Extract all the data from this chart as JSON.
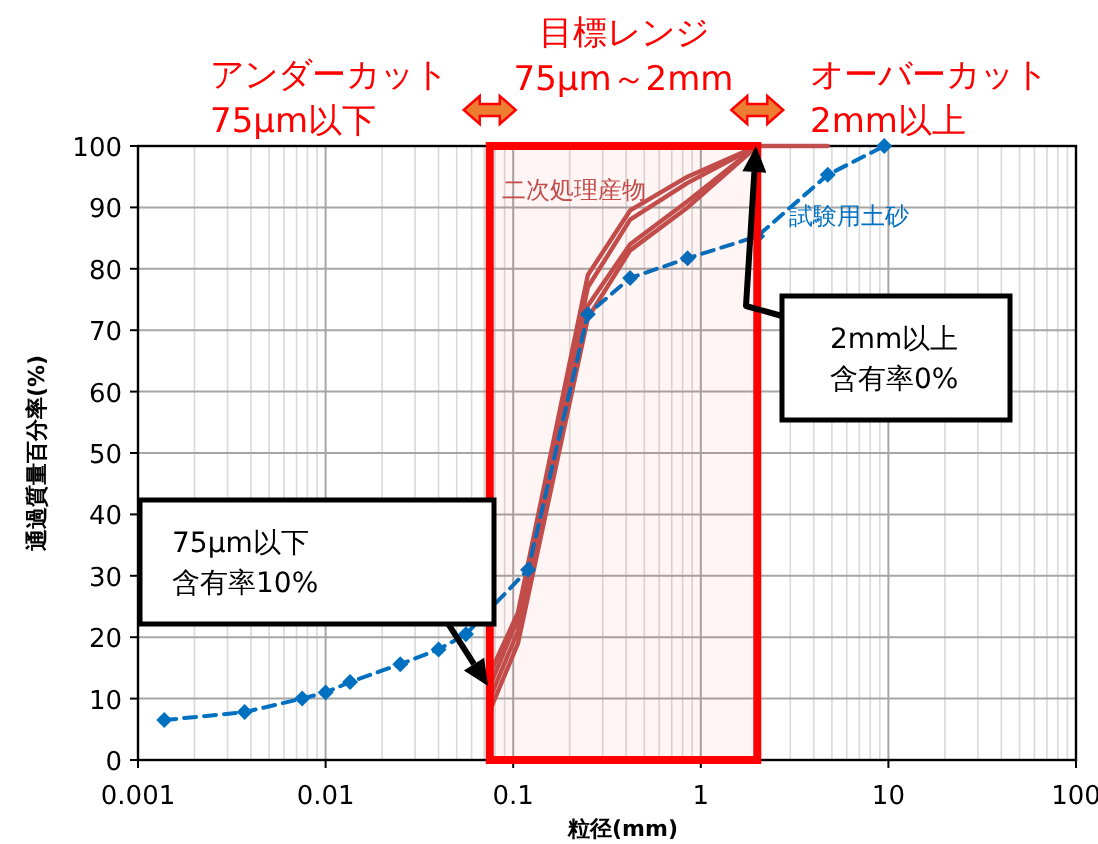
{
  "chart_data": {
    "type": "line",
    "xlabel": "粒径(mm)",
    "ylabel": "通過質量百分率(%)",
    "log": "x",
    "grid": true,
    "legend": false,
    "xlim": [
      0.001,
      100
    ],
    "xticks": [
      0.001,
      0.01,
      0.1,
      1,
      10,
      100
    ],
    "ylim": [
      0,
      100
    ],
    "yticks": [
      0,
      10,
      20,
      30,
      40,
      50,
      60,
      70,
      80,
      90,
      100
    ],
    "series": [
      {
        "name": "二次処理産物",
        "color": "#c0504d",
        "marker": "none",
        "x": [
          0.075,
          0.106,
          0.25,
          0.42,
          0.85,
          2,
          4.75
        ],
        "values": [
          14,
          24,
          79,
          89.5,
          95,
          100,
          100
        ]
      },
      {
        "color": "#c0504d",
        "marker": "none",
        "x": [
          0.075,
          0.106,
          0.25,
          0.42,
          0.85,
          2
        ],
        "values": [
          12,
          23,
          77,
          88,
          94,
          100
        ]
      },
      {
        "color": "#c0504d",
        "marker": "none",
        "x": [
          0.075,
          0.106,
          0.25,
          0.42,
          0.85,
          2
        ],
        "values": [
          10,
          21,
          74,
          84,
          91,
          100
        ]
      },
      {
        "color": "#c0504d",
        "marker": "none",
        "x": [
          0.075,
          0.106,
          0.25,
          0.42,
          0.85,
          2
        ],
        "values": [
          8,
          19,
          72,
          83,
          90,
          100
        ]
      },
      {
        "name": "試験用土砂",
        "color": "#0070c0",
        "marker": "diamond",
        "line_style": "dashed",
        "x": [
          0.00138,
          0.0037,
          0.0075,
          0.01,
          0.0135,
          0.025,
          0.04,
          0.056,
          0.12,
          0.25,
          0.42,
          0.85,
          2,
          4.75,
          9.5
        ],
        "values": [
          6.5,
          7.8,
          10,
          11,
          12.7,
          15.6,
          18,
          20.5,
          31,
          72.6,
          78.5,
          81.7,
          85.3,
          95.3,
          100
        ]
      }
    ],
    "bands": [
      {
        "axis": "x",
        "from": 0.075,
        "to": 2,
        "label": "目標レンジ\n75μm～2mm",
        "color": "#ff0000"
      }
    ],
    "annotations": [
      "アンダーカット\n75μm以下",
      "オーバーカット\n2mm以上",
      "75µm以下含有率10%",
      "2mm以上含有率0%"
    ]
  }
}
